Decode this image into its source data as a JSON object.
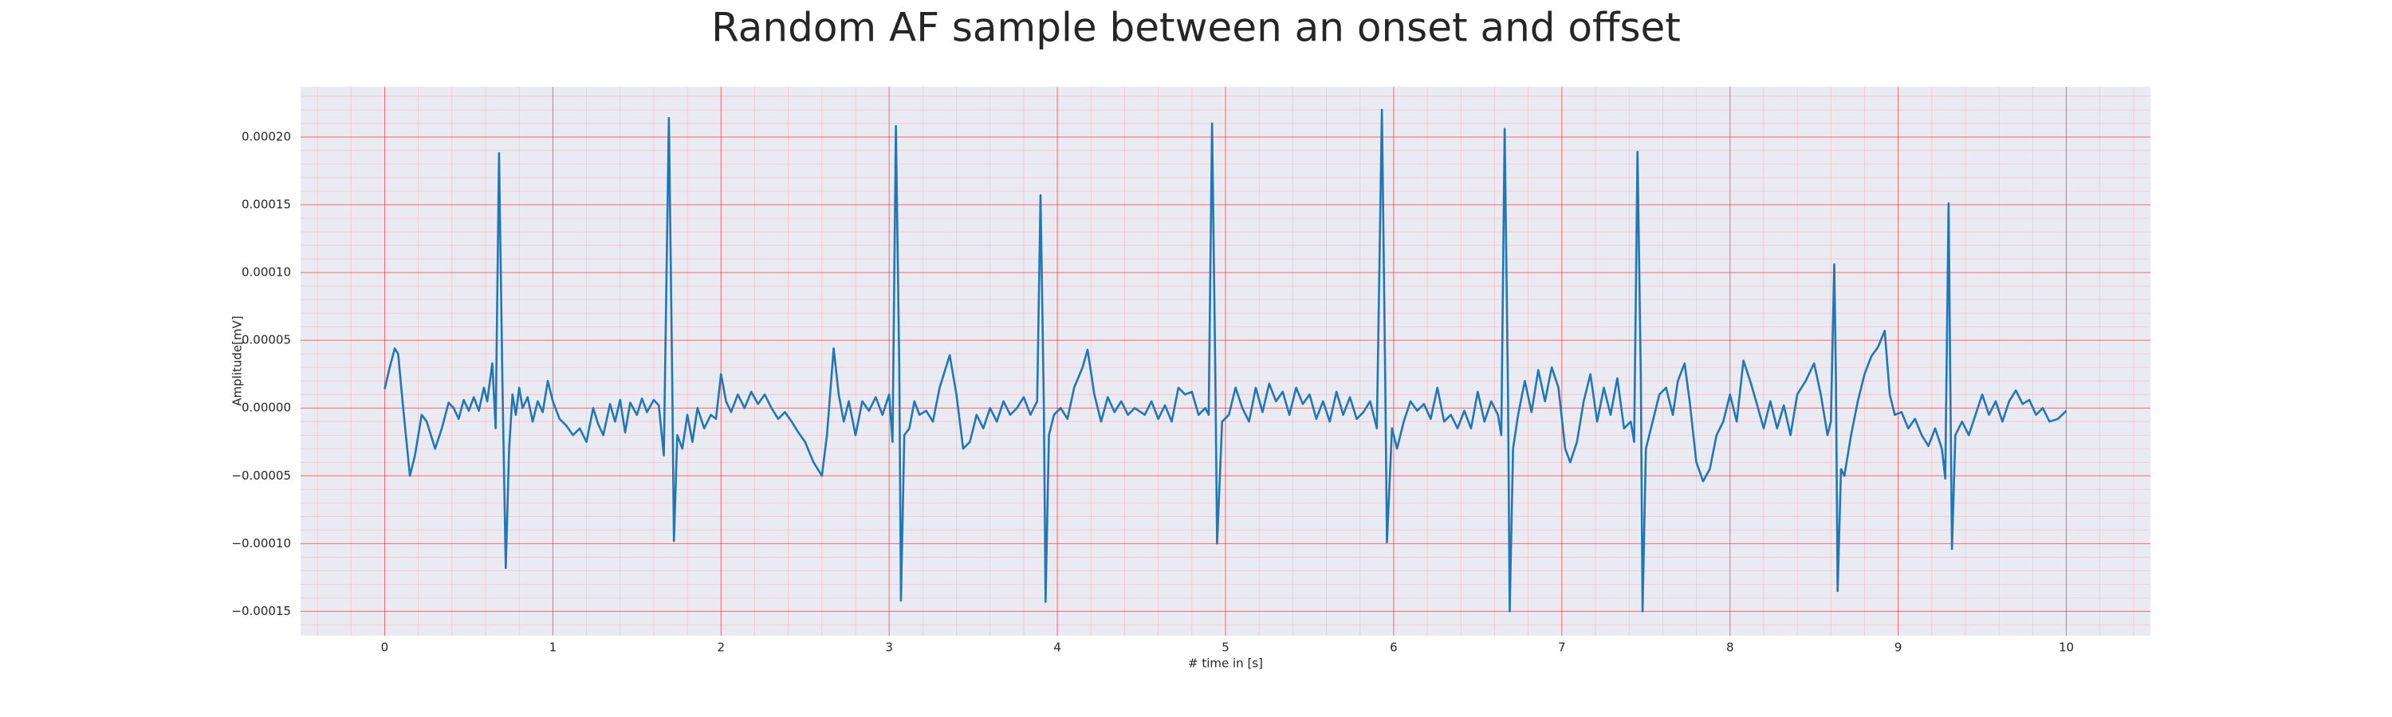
{
  "chart_data": {
    "type": "line",
    "title": "Random AF sample between an onset and offset",
    "xlabel": "# time in [s]",
    "ylabel": "Amplitude[mV]",
    "color": "#1f77b4",
    "grid": true,
    "minor_grid": true,
    "minor_divisions": 5,
    "xlim": [
      -0.5,
      10.5
    ],
    "ylim": [
      -0.000168,
      0.000237
    ],
    "xticks": [
      0,
      1,
      2,
      3,
      4,
      5,
      6,
      7,
      8,
      9,
      10
    ],
    "yticks": [
      {
        "value": -0.00015,
        "label": "−0.00015"
      },
      {
        "value": -0.0001,
        "label": "−0.00010"
      },
      {
        "value": -5e-05,
        "label": "−0.00005"
      },
      {
        "value": 0,
        "label": "0.00000"
      },
      {
        "value": 5e-05,
        "label": "0.00005"
      },
      {
        "value": 0.0001,
        "label": "0.00010"
      },
      {
        "value": 0.00015,
        "label": "0.00015"
      },
      {
        "value": 0.0002,
        "label": "0.00020"
      }
    ],
    "x": [
      0.0,
      0.03,
      0.06,
      0.08,
      0.11,
      0.15,
      0.18,
      0.22,
      0.25,
      0.3,
      0.34,
      0.38,
      0.41,
      0.44,
      0.47,
      0.5,
      0.53,
      0.56,
      0.59,
      0.61,
      0.64,
      0.66,
      0.68,
      0.7,
      0.72,
      0.74,
      0.76,
      0.78,
      0.8,
      0.82,
      0.85,
      0.88,
      0.91,
      0.94,
      0.97,
      1.0,
      1.04,
      1.08,
      1.12,
      1.16,
      1.2,
      1.24,
      1.27,
      1.3,
      1.34,
      1.37,
      1.4,
      1.43,
      1.46,
      1.5,
      1.53,
      1.56,
      1.6,
      1.63,
      1.66,
      1.69,
      1.71,
      1.72,
      1.74,
      1.77,
      1.8,
      1.83,
      1.86,
      1.9,
      1.94,
      1.97,
      2.0,
      2.03,
      2.06,
      2.1,
      2.14,
      2.18,
      2.22,
      2.26,
      2.3,
      2.34,
      2.38,
      2.42,
      2.46,
      2.5,
      2.55,
      2.6,
      2.63,
      2.67,
      2.7,
      2.73,
      2.76,
      2.8,
      2.84,
      2.88,
      2.92,
      2.96,
      3.0,
      3.02,
      3.04,
      3.06,
      3.07,
      3.09,
      3.12,
      3.15,
      3.18,
      3.22,
      3.26,
      3.3,
      3.36,
      3.4,
      3.44,
      3.48,
      3.52,
      3.56,
      3.6,
      3.64,
      3.68,
      3.72,
      3.76,
      3.8,
      3.84,
      3.88,
      3.9,
      3.92,
      3.93,
      3.95,
      3.98,
      4.02,
      4.06,
      4.1,
      4.15,
      4.18,
      4.22,
      4.26,
      4.3,
      4.34,
      4.38,
      4.42,
      4.46,
      4.52,
      4.56,
      4.6,
      4.64,
      4.68,
      4.72,
      4.76,
      4.8,
      4.84,
      4.88,
      4.9,
      4.92,
      4.94,
      4.95,
      4.98,
      5.02,
      5.06,
      5.1,
      5.14,
      5.18,
      5.22,
      5.26,
      5.3,
      5.34,
      5.38,
      5.42,
      5.46,
      5.5,
      5.54,
      5.58,
      5.62,
      5.66,
      5.7,
      5.74,
      5.78,
      5.82,
      5.86,
      5.9,
      5.93,
      5.95,
      5.96,
      5.99,
      6.02,
      6.06,
      6.1,
      6.14,
      6.18,
      6.22,
      6.26,
      6.3,
      6.34,
      6.38,
      6.42,
      6.46,
      6.5,
      6.54,
      6.58,
      6.62,
      6.64,
      6.66,
      6.68,
      6.69,
      6.71,
      6.74,
      6.78,
      6.82,
      6.86,
      6.9,
      6.94,
      6.98,
      7.02,
      7.05,
      7.09,
      7.13,
      7.17,
      7.21,
      7.25,
      7.29,
      7.33,
      7.37,
      7.41,
      7.43,
      7.45,
      7.47,
      7.48,
      7.5,
      7.54,
      7.58,
      7.62,
      7.66,
      7.69,
      7.73,
      7.76,
      7.8,
      7.84,
      7.88,
      7.92,
      7.96,
      8.0,
      8.04,
      8.08,
      8.12,
      8.16,
      8.2,
      8.24,
      8.28,
      8.32,
      8.36,
      8.4,
      8.45,
      8.5,
      8.54,
      8.58,
      8.6,
      8.62,
      8.63,
      8.64,
      8.66,
      8.68,
      8.72,
      8.76,
      8.8,
      8.84,
      8.88,
      8.92,
      8.95,
      8.98,
      9.02,
      9.06,
      9.1,
      9.14,
      9.18,
      9.22,
      9.26,
      9.28,
      9.3,
      9.31,
      9.32,
      9.34,
      9.38,
      9.42,
      9.46,
      9.5,
      9.54,
      9.58,
      9.62,
      9.66,
      9.7,
      9.74,
      9.78,
      9.82,
      9.86,
      9.9,
      9.95,
      10.0
    ],
    "values": [
      1.4e-05,
      3e-05,
      4.4e-05,
      4e-05,
      0,
      -5e-05,
      -3.5e-05,
      -5e-06,
      -1e-05,
      -3e-05,
      -1.5e-05,
      4e-06,
      0,
      -8e-06,
      6e-06,
      -2e-06,
      8e-06,
      -2e-06,
      1.5e-05,
      5e-06,
      3.3e-05,
      -1.5e-05,
      0.000188,
      2e-05,
      -0.000118,
      -3e-05,
      1e-05,
      -5e-06,
      1.5e-05,
      0,
      8e-06,
      -1e-05,
      5e-06,
      -3e-06,
      2e-05,
      5e-06,
      -8e-06,
      -1.3e-05,
      -2e-05,
      -1.5e-05,
      -2.5e-05,
      0,
      -1.2e-05,
      -2e-05,
      3e-06,
      -1e-05,
      6e-06,
      -1.8e-05,
      4e-06,
      -5e-06,
      7e-06,
      -3e-06,
      6e-06,
      2e-06,
      -3.5e-05,
      0.000214,
      2e-05,
      -9.8e-05,
      -2e-05,
      -3e-05,
      -5e-06,
      -2.5e-05,
      0,
      -1.5e-05,
      -5e-06,
      -8e-06,
      2.5e-05,
      5e-06,
      -3e-06,
      1e-05,
      0,
      1.2e-05,
      3e-06,
      1e-05,
      0,
      -8e-06,
      -3e-06,
      -1e-05,
      -1.8e-05,
      -2.5e-05,
      -4e-05,
      -5e-05,
      -2e-05,
      4.4e-05,
      1e-05,
      -1e-05,
      5e-06,
      -2e-05,
      5e-06,
      -2e-06,
      8e-06,
      -5e-06,
      1e-05,
      -2.5e-05,
      0.000208,
      3e-05,
      -0.000142,
      -2e-05,
      -1.5e-05,
      5e-06,
      -5e-06,
      -2e-06,
      -1e-05,
      1.5e-05,
      3.9e-05,
      1e-05,
      -3e-05,
      -2.5e-05,
      -5e-06,
      -1.5e-05,
      0,
      -1e-05,
      5e-06,
      -5e-06,
      0,
      8e-06,
      -5e-06,
      5e-06,
      0.000157,
      0,
      -0.000143,
      -2e-05,
      -5e-06,
      0,
      -8e-06,
      1.5e-05,
      3e-05,
      4.3e-05,
      1e-05,
      -1e-05,
      8e-06,
      -3e-06,
      5e-06,
      -5e-06,
      0,
      -5e-06,
      5e-06,
      -8e-06,
      2e-06,
      -1e-05,
      1.5e-05,
      1e-05,
      1.2e-05,
      -5e-06,
      0,
      -5e-06,
      0.00021,
      2e-05,
      -0.0001,
      -1e-05,
      -5e-06,
      1.5e-05,
      0,
      -1e-05,
      1.5e-05,
      -3e-06,
      1.8e-05,
      5e-06,
      1.2e-05,
      -5e-06,
      1.5e-05,
      3e-06,
      1e-05,
      -8e-06,
      5e-06,
      -1e-05,
      1.2e-05,
      -5e-06,
      8e-06,
      -8e-06,
      -3e-06,
      5e-06,
      -1.5e-05,
      0.00022,
      2e-05,
      -9.9e-05,
      -1.5e-05,
      -3e-05,
      -1e-05,
      5e-06,
      -2e-06,
      3e-06,
      -8e-06,
      1.5e-05,
      -1e-05,
      -5e-06,
      -1.5e-05,
      -2e-06,
      -1.5e-05,
      1.2e-05,
      -1e-05,
      5e-06,
      -5e-06,
      -2e-05,
      0.000206,
      1e-05,
      -0.00015,
      -3e-05,
      -5e-06,
      2e-05,
      -3e-06,
      2.8e-05,
      5e-06,
      3e-05,
      1.5e-05,
      -3e-05,
      -4e-05,
      -2.5e-05,
      5e-06,
      2.5e-05,
      -1e-05,
      1.5e-05,
      -5e-06,
      2.2e-05,
      -1.5e-05,
      -1e-05,
      -2.5e-05,
      0.000189,
      2e-05,
      -0.00015,
      -3e-05,
      -1e-05,
      1e-05,
      1.5e-05,
      -5e-06,
      2e-05,
      3.3e-05,
      5e-06,
      -4e-05,
      -5.4e-05,
      -4.5e-05,
      -2e-05,
      -1e-05,
      1e-05,
      -1e-05,
      3.5e-05,
      2e-05,
      3e-06,
      -1.5e-05,
      5e-06,
      -1.5e-05,
      2e-06,
      -2e-05,
      1e-05,
      2e-05,
      3.3e-05,
      1e-05,
      -2e-05,
      -1e-05,
      0.000106,
      2e-05,
      -0.000135,
      -4.5e-05,
      -5e-05,
      -2e-05,
      5e-06,
      2.5e-05,
      3.8e-05,
      4.5e-05,
      5.7e-05,
      1e-05,
      -5e-06,
      -3e-06,
      -1.5e-05,
      -8e-06,
      -2e-05,
      -2.8e-05,
      -1.5e-05,
      -3e-05,
      -5.2e-05,
      0.000151,
      2e-05,
      -0.000104,
      -2e-05,
      -1e-05,
      -2e-05,
      -5e-06,
      1e-05,
      -5e-06,
      5e-06,
      -1e-05,
      5e-06,
      1.3e-05,
      3e-06,
      6e-06,
      -5e-06,
      0,
      -1e-05,
      -8e-06,
      -2e-06
    ]
  }
}
